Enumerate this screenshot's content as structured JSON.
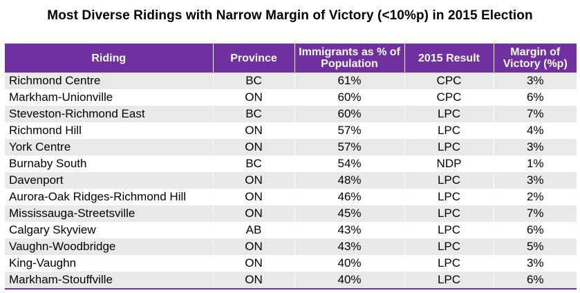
{
  "colors": {
    "header_bg": "#7030a0",
    "header_text": "#ffffff",
    "row_alt": "#e9e9e9",
    "row_plain": "#ffffff"
  },
  "chart_data": {
    "type": "table",
    "title": "Most Diverse Ridings with Narrow Margin of Victory (<10%p) in 2015 Election",
    "columns": [
      "Riding",
      "Province",
      "Immigrants as % of Population",
      "2015 Result",
      "Margin of Victory (%p)"
    ],
    "rows": [
      [
        "Richmond Centre",
        "BC",
        "61%",
        "CPC",
        "3%"
      ],
      [
        "Markham-Unionville",
        "ON",
        "60%",
        "CPC",
        "6%"
      ],
      [
        "Steveston-Richmond East",
        "BC",
        "60%",
        "LPC",
        "7%"
      ],
      [
        "Richmond Hill",
        "ON",
        "57%",
        "LPC",
        "4%"
      ],
      [
        "York Centre",
        "ON",
        "57%",
        "LPC",
        "3%"
      ],
      [
        "Burnaby South",
        "BC",
        "54%",
        "NDP",
        "1%"
      ],
      [
        "Davenport",
        "ON",
        "48%",
        "LPC",
        "3%"
      ],
      [
        "Aurora-Oak Ridges-Richmond Hill",
        "ON",
        "46%",
        "LPC",
        "2%"
      ],
      [
        "Mississauga-Streetsville",
        "ON",
        "45%",
        "LPC",
        "7%"
      ],
      [
        "Calgary Skyview",
        "AB",
        "43%",
        "LPC",
        "6%"
      ],
      [
        "Vaughn-Woodbridge",
        "ON",
        "43%",
        "LPC",
        "5%"
      ],
      [
        "King-Vaughn",
        "ON",
        "40%",
        "LPC",
        "3%"
      ],
      [
        "Markham-Stouffville",
        "ON",
        "40%",
        "LPC",
        "6%"
      ]
    ]
  }
}
